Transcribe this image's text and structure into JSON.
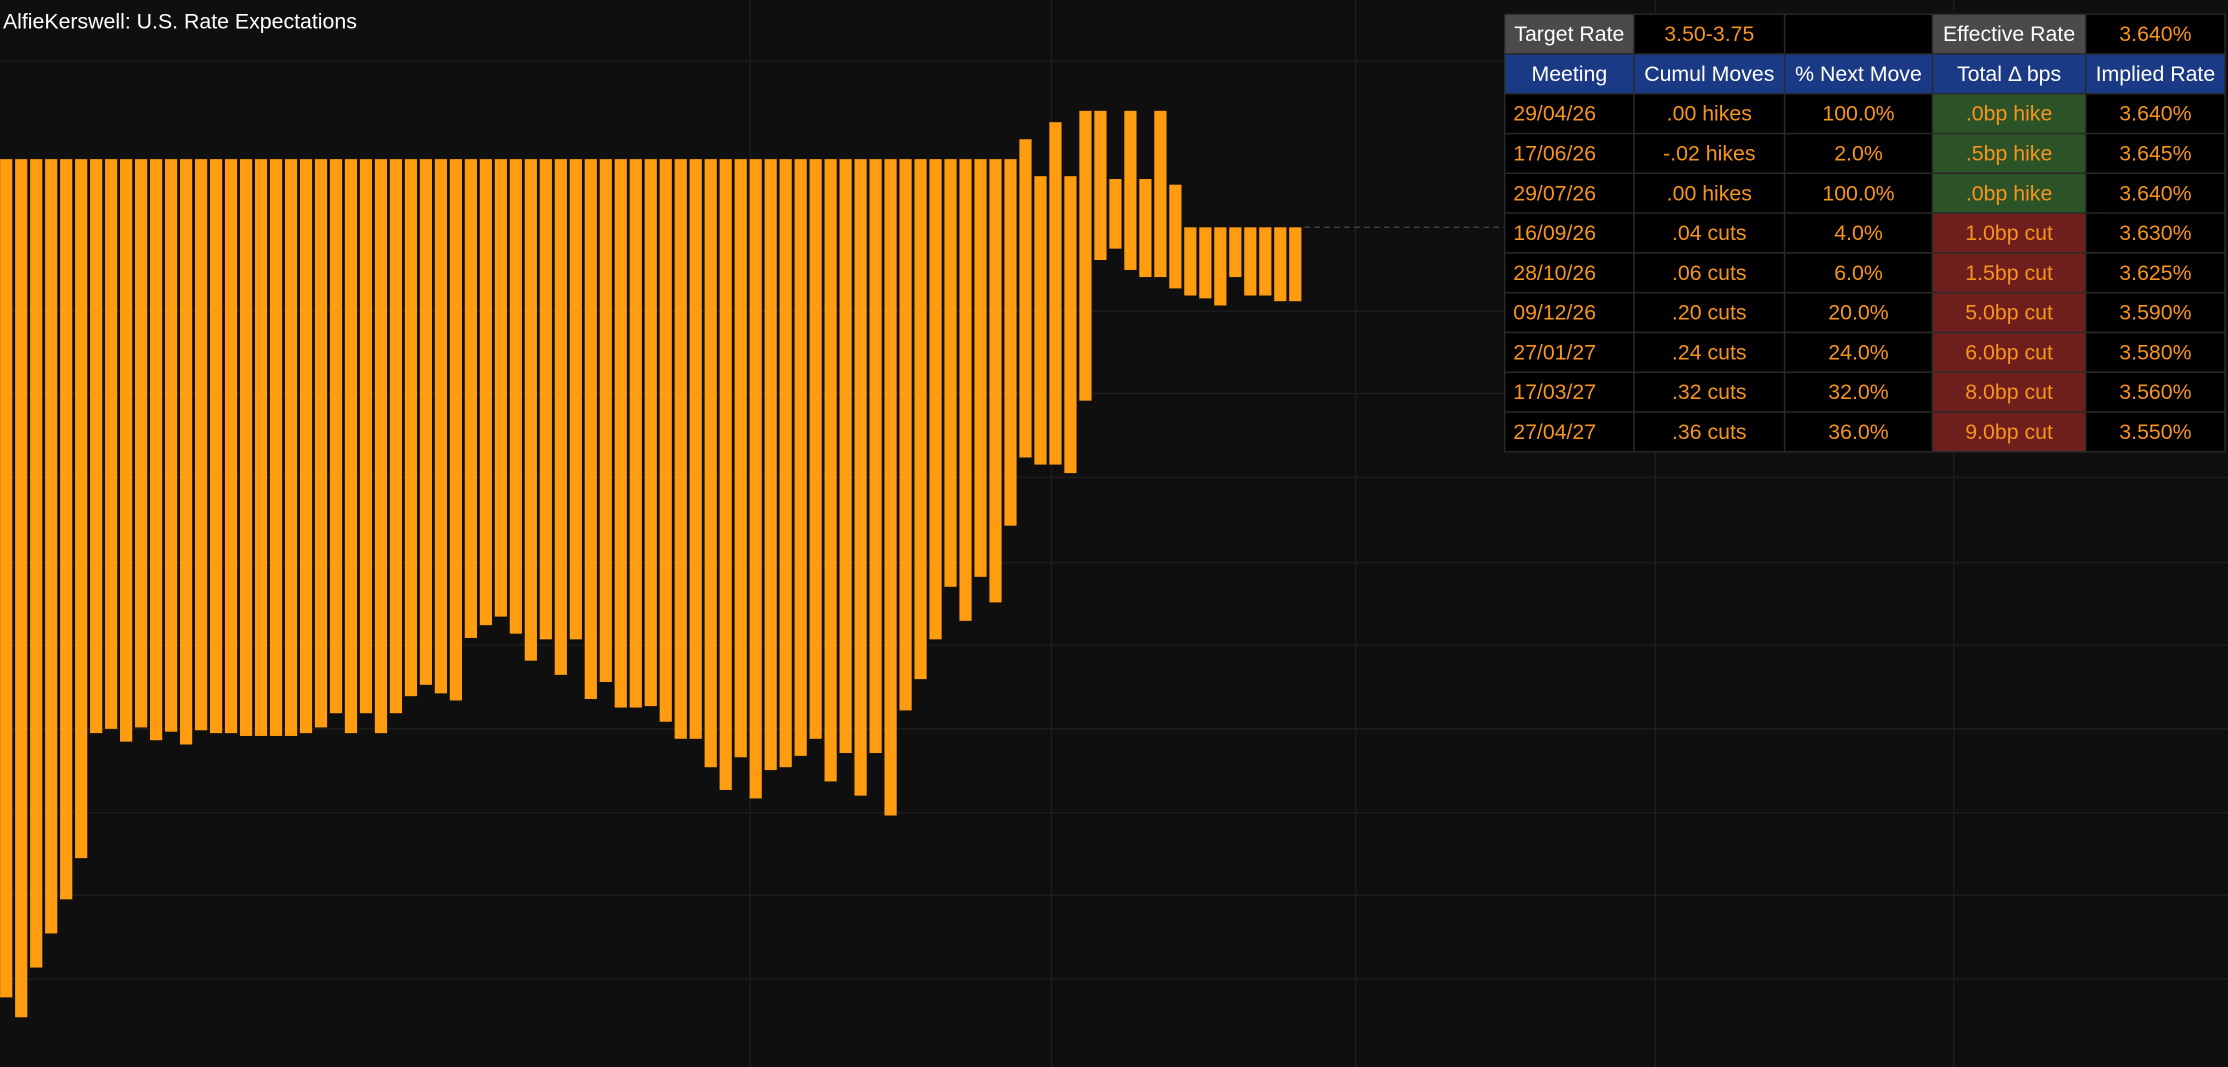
{
  "chart_data": {
    "type": "bar",
    "title": "AlfieKerswell: U.S. Rate Expectations",
    "color": "#ff9c10",
    "ylim": [
      0,
      751
    ],
    "high": [
      639,
      639,
      639,
      639,
      639,
      639,
      639,
      639,
      639,
      639,
      639,
      639,
      639,
      639,
      639,
      639,
      639,
      639,
      639,
      639,
      639,
      639,
      639,
      639,
      639,
      639,
      639,
      639,
      639,
      639,
      639,
      639,
      639,
      639,
      639,
      639,
      639,
      639,
      639,
      639,
      639,
      639,
      639,
      639,
      639,
      639,
      639,
      639,
      639,
      639,
      639,
      639,
      639,
      639,
      639,
      639,
      639,
      639,
      639,
      639,
      639,
      639,
      639,
      639,
      639,
      639,
      639,
      639,
      653,
      627,
      665,
      627,
      673,
      673,
      625,
      673,
      625,
      673,
      621,
      591,
      591,
      591,
      591,
      591,
      591,
      591,
      591
    ],
    "low": [
      49,
      35,
      70,
      94,
      118,
      147,
      235,
      238,
      229,
      239,
      230,
      236,
      227,
      237,
      235,
      235,
      233,
      233,
      233,
      233,
      235,
      239,
      249,
      235,
      249,
      235,
      249,
      261,
      269,
      263,
      258,
      302,
      311,
      317,
      305,
      286,
      301,
      276,
      301,
      259,
      271,
      253,
      253,
      254,
      243,
      231,
      231,
      211,
      195,
      218,
      189,
      209,
      211,
      219,
      231,
      201,
      221,
      191,
      221,
      177,
      251,
      273,
      301,
      338,
      314,
      345,
      327,
      381,
      429,
      424,
      424,
      418,
      469,
      568,
      576,
      561,
      556,
      556,
      548,
      543,
      541,
      536,
      556,
      543,
      543,
      539,
      539
    ]
  },
  "table": {
    "target_label": "Target Rate",
    "target_value": "3.50-3.75",
    "effective_label": "Effective Rate",
    "effective_value": "3.640%",
    "columns": [
      "Meeting",
      "Cumul Moves",
      "% Next Move",
      "Total Δ bps",
      "Implied Rate"
    ],
    "rows": [
      [
        "29/04/26",
        ".00 hikes",
        "100.0%",
        ".0bp hike",
        "3.640%"
      ],
      [
        "17/06/26",
        "-.02 hikes",
        "2.0%",
        ".5bp hike",
        "3.645%"
      ],
      [
        "29/07/26",
        ".00 hikes",
        "100.0%",
        ".0bp hike",
        "3.640%"
      ],
      [
        "16/09/26",
        ".04 cuts",
        "4.0%",
        "1.0bp cut",
        "3.630%"
      ],
      [
        "28/10/26",
        ".06 cuts",
        "6.0%",
        "1.5bp cut",
        "3.625%"
      ],
      [
        "09/12/26",
        ".20 cuts",
        "20.0%",
        "5.0bp cut",
        "3.590%"
      ],
      [
        "27/01/27",
        ".24 cuts",
        "24.0%",
        "6.0bp cut",
        "3.580%"
      ],
      [
        "17/03/27",
        ".32 cuts",
        "32.0%",
        "8.0bp cut",
        "3.560%"
      ],
      [
        "27/04/27",
        ".36 cuts",
        "36.0%",
        "9.0bp cut",
        "3.550%"
      ]
    ],
    "bps_colors": [
      "#2c5327",
      "#2c5327",
      "#2c5327",
      "#6e1f1d",
      "#6e1f1d",
      "#6e1f1d",
      "#6e1f1d",
      "#6e1f1d",
      "#6e1f1d"
    ]
  }
}
